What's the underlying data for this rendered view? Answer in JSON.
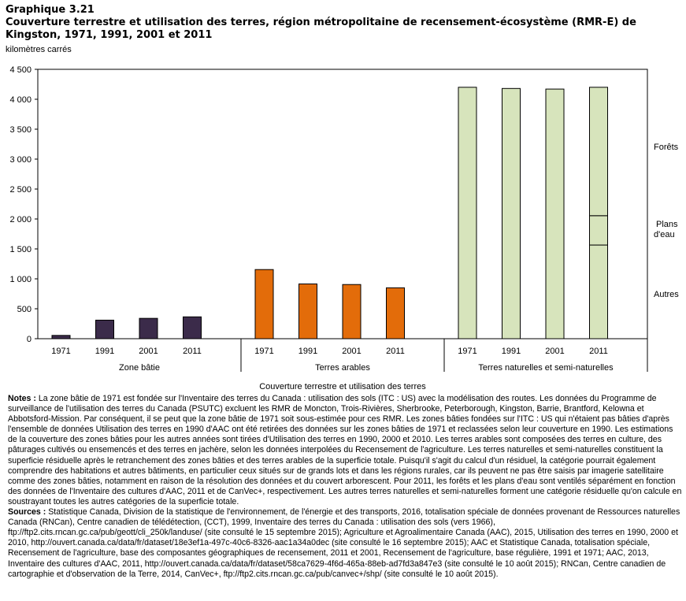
{
  "header": {
    "label": "Graphique 3.21",
    "title": "Couverture terrestre et utilisation des terres, région métropolitaine de recensement-écosystème (RMR-E) de Kingston, 1971, 1991, 2001 et 2011",
    "unit": "kilomètres carrés"
  },
  "chart_data": {
    "type": "bar",
    "title": "Couverture terrestre et utilisation des terres, région métropolitaine de recensement-écosystème (RMR-E) de Kingston, 1971, 1991, 2001 et 2011",
    "ylabel": "kilomètres carrés",
    "xlabel": "Couverture terrestre et utilisation des terres",
    "ylim": [
      0,
      4500
    ],
    "yticks": [
      0,
      500,
      1000,
      1500,
      2000,
      2500,
      3000,
      3500,
      4000,
      4500
    ],
    "ytick_labels": [
      "0",
      "500",
      "1 000",
      "1 500",
      "2 000",
      "2 500",
      "3 000",
      "3 500",
      "4 000",
      "4 500"
    ],
    "groups": [
      {
        "name": "Zone bâtie",
        "color": "#3b2b4a",
        "categories": [
          "1971",
          "1991",
          "2001",
          "2011"
        ],
        "values": [
          55,
          310,
          340,
          365
        ]
      },
      {
        "name": "Terres arables",
        "color": "#e36c0a",
        "categories": [
          "1971",
          "1991",
          "2001",
          "2011"
        ],
        "values": [
          1155,
          915,
          905,
          850
        ]
      },
      {
        "name": "Terres naturelles et semi-naturelles",
        "color": "#d7e4bc",
        "categories": [
          "1971",
          "1991",
          "2001",
          "2011"
        ],
        "values": [
          4200,
          4180,
          4170,
          4200
        ],
        "stack_2011": [
          {
            "name": "Autres",
            "value": 1565
          },
          {
            "name": "Plans d'eau",
            "value": 490
          },
          {
            "name": "Forêts",
            "value": 2145
          }
        ]
      }
    ],
    "stack_labels": [
      "Forêts",
      "Plans d'eau",
      "Autres"
    ]
  },
  "notes": {
    "notes_label": "Notes :",
    "notes_text": "La zone bâtie de 1971 est fondée sur l'Inventaire des terres du Canada : utilisation des sols (ITC : US) avec la modélisation des routes. Les données du Programme de surveillance de l'utilisation des terres du Canada (PSUTC) excluent les RMR de Moncton, Trois-Rivières, Sherbrooke, Peterborough, Kingston, Barrie, Brantford, Kelowna et Abbotsford-Mission. Par conséquent, il se peut que la zone bâtie de 1971 soit sous-estimée pour ces RMR. Les zones bâties fondées sur l'ITC : US qui n'étaient pas bâties d'après l'ensemble de données Utilisation des terres en 1990 d'AAC ont été retirées des données sur les zones bâties de 1971 et reclassées selon leur couverture en 1990. Les estimations de la couverture des zones bâties pour les autres années sont tirées d'Utilisation des terres en 1990, 2000 et 2010. Les terres arables sont composées des terres en culture, des pâturages cultivés ou ensemencés et des terres en jachère, selon les données interpolées du Recensement de l'agriculture. Les terres naturelles et semi-naturelles constituent la superficie résiduelle après le retranchement des zones bâties et des terres arables de la superficie totale. Puisqu'il s'agit du calcul d'un résiduel, la catégorie pourrait également comprendre des habitations et autres bâtiments, en particulier ceux situés sur de grands lots et dans les régions rurales, car ils peuvent ne pas être saisis par imagerie satellitaire comme des zones bâties, notamment en raison de la résolution des données et du couvert arborescent. Pour 2011, les forêts et les plans d'eau sont ventilés séparément en fonction des données de l'Inventaire des cultures d'AAC, 2011 et de CanVec+, respectivement. Les autres terres naturelles et semi-naturelles forment une catégorie résiduelle qu'on calcule en soustrayant toutes les autres catégories de la superficie totale.",
    "sources_label": "Sources :",
    "sources_text": "Statistique Canada, Division de la statistique de l'environnement, de l'énergie et des transports, 2016, totalisation spéciale de données provenant de Ressources naturelles Canada (RNCan), Centre canadien de télédétection, (CCT), 1999, Inventaire des terres du Canada : utilisation des sols (vers 1966), ftp://ftp2.cits.rncan.gc.ca/pub/geott/cli_250k/landuse/ (site consulté le 15 septembre 2015); Agriculture et Agroalimentaire Canada (AAC), 2015, Utilisation des terres en 1990, 2000 et 2010, http://ouvert.canada.ca/data/fr/dataset/18e3ef1a-497c-40c6-8326-aac1a34a0dec (site consulté le 16 septembre 2015); AAC et Statistique Canada, totalisation spéciale, Recensement de l'agriculture, base des composantes géographiques de recensement, 2011 et 2001, Recensement de l'agriculture, base régulière, 1991 et 1971; AAC, 2013, Inventaire des cultures d'AAC, 2011, http://ouvert.canada.ca/data/fr/dataset/58ca7629-4f6d-465a-88eb-ad7fd3a847e3 (site consulté le 10 août 2015); RNCan, Centre canadien de cartographie et d'observation de la Terre, 2014, CanVec+, ftp://ftp2.cits.rncan.gc.ca/pub/canvec+/shp/ (site consulté le 10 août 2015)."
  }
}
